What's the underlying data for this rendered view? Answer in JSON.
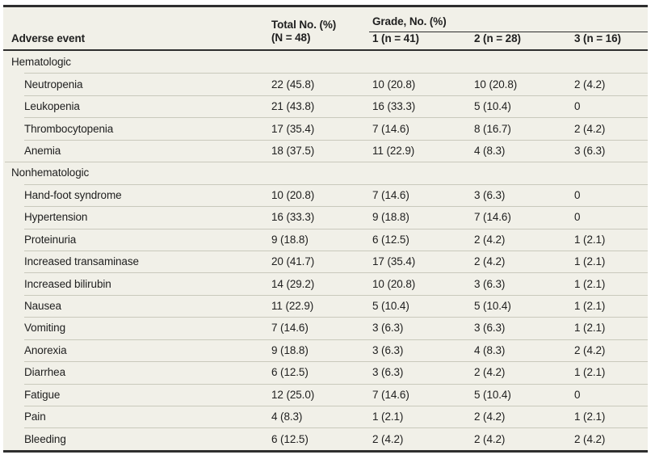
{
  "header": {
    "adverse_event": "Adverse event",
    "total_line1": "Total No. (%)",
    "total_line2": "(N = 48)",
    "grade_group": "Grade, No. (%)",
    "grade1": "1 (n = 41)",
    "grade2": "2 (n = 28)",
    "grade3": "3 (n = 16)"
  },
  "colors": {
    "table_background": "#f1f0e8",
    "dark_rule": "#2e2e2e",
    "light_separator": "#c9c9bc",
    "text": "#202020"
  },
  "rows": [
    {
      "section": true,
      "label": "Hematologic",
      "total": "",
      "g1": "",
      "g2": "",
      "g3": ""
    },
    {
      "section": false,
      "label": "Neutropenia",
      "total": "22 (45.8)",
      "g1": "10 (20.8)",
      "g2": "10 (20.8)",
      "g3": "2 (4.2)"
    },
    {
      "section": false,
      "label": "Leukopenia",
      "total": "21 (43.8)",
      "g1": "16 (33.3)",
      "g2": "5 (10.4)",
      "g3": "0"
    },
    {
      "section": false,
      "label": "Thrombocytopenia",
      "total": "17 (35.4)",
      "g1": "7 (14.6)",
      "g2": "8 (16.7)",
      "g3": "2 (4.2)"
    },
    {
      "section": false,
      "label": "Anemia",
      "total": "18 (37.5)",
      "g1": "11 (22.9)",
      "g2": "4 (8.3)",
      "g3": "3 (6.3)"
    },
    {
      "section": true,
      "label": "Nonhematologic",
      "total": "",
      "g1": "",
      "g2": "",
      "g3": ""
    },
    {
      "section": false,
      "label": "Hand-foot syndrome",
      "total": "10 (20.8)",
      "g1": "7 (14.6)",
      "g2": "3 (6.3)",
      "g3": "0"
    },
    {
      "section": false,
      "label": "Hypertension",
      "total": "16 (33.3)",
      "g1": "9 (18.8)",
      "g2": "7 (14.6)",
      "g3": "0"
    },
    {
      "section": false,
      "label": "Proteinuria",
      "total": "9 (18.8)",
      "g1": "6 (12.5)",
      "g2": "2 (4.2)",
      "g3": "1 (2.1)"
    },
    {
      "section": false,
      "label": "Increased transaminase",
      "total": "20 (41.7)",
      "g1": "17 (35.4)",
      "g2": "2 (4.2)",
      "g3": "1 (2.1)"
    },
    {
      "section": false,
      "label": "Increased bilirubin",
      "total": "14 (29.2)",
      "g1": "10 (20.8)",
      "g2": "3 (6.3)",
      "g3": "1 (2.1)"
    },
    {
      "section": false,
      "label": "Nausea",
      "total": "11 (22.9)",
      "g1": "5 (10.4)",
      "g2": "5 (10.4)",
      "g3": "1 (2.1)"
    },
    {
      "section": false,
      "label": "Vomiting",
      "total": "7 (14.6)",
      "g1": "3 (6.3)",
      "g2": "3 (6.3)",
      "g3": "1 (2.1)"
    },
    {
      "section": false,
      "label": "Anorexia",
      "total": "9 (18.8)",
      "g1": "3 (6.3)",
      "g2": "4 (8.3)",
      "g3": "2 (4.2)"
    },
    {
      "section": false,
      "label": "Diarrhea",
      "total": "6 (12.5)",
      "g1": "3 (6.3)",
      "g2": "2 (4.2)",
      "g3": "1 (2.1)"
    },
    {
      "section": false,
      "label": "Fatigue",
      "total": "12 (25.0)",
      "g1": "7 (14.6)",
      "g2": "5 (10.4)",
      "g3": "0"
    },
    {
      "section": false,
      "label": "Pain",
      "total": "4 (8.3)",
      "g1": "1 (2.1)",
      "g2": "2 (4.2)",
      "g3": "1 (2.1)"
    },
    {
      "section": false,
      "label": "Bleeding",
      "total": "6 (12.5)",
      "g1": "2 (4.2)",
      "g2": "2 (4.2)",
      "g3": "2 (4.2)"
    }
  ]
}
